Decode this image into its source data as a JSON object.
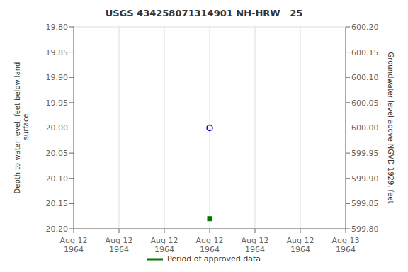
{
  "chart_data": {
    "type": "scatter",
    "title": "USGS 434258071314901 NH-HRW   25",
    "ylabel": "Depth to water level, feet below land\n surface",
    "y2label": "Groundwater level above NGVD 1929, feet",
    "categories": [
      "Aug 12\n1964",
      "Aug 12\n1964",
      "Aug 12\n1964",
      "Aug 12\n1964",
      "Aug 12\n1964",
      "Aug 12\n1964",
      "Aug 13\n1964"
    ],
    "series": [
      {
        "color": "#0000cc",
        "marker": "circle",
        "values": [
          null,
          null,
          null,
          20.0,
          null,
          null,
          null
        ]
      },
      {
        "name": "Period of approved data",
        "color": "#007700",
        "marker": "square",
        "values": [
          null,
          null,
          null,
          20.18,
          null,
          null,
          null
        ]
      }
    ],
    "ylim": [
      20.2,
      19.8
    ],
    "yticks": [
      {
        "value": 19.8,
        "label": "19.80"
      },
      {
        "value": 19.85,
        "label": "19.85"
      },
      {
        "value": 19.9,
        "label": "19.90"
      },
      {
        "value": 19.95,
        "label": "19.95"
      },
      {
        "value": 20.0,
        "label": "20.00"
      },
      {
        "value": 20.05,
        "label": "20.05"
      },
      {
        "value": 20.1,
        "label": "20.10"
      },
      {
        "value": 20.15,
        "label": "20.15"
      },
      {
        "value": 20.2,
        "label": "20.20"
      }
    ],
    "y2lim": [
      599.8,
      600.2
    ],
    "y2ticks": [
      {
        "value": 600.2,
        "label": "600.20"
      },
      {
        "value": 600.15,
        "label": "600.15"
      },
      {
        "value": 600.1,
        "label": "600.10"
      },
      {
        "value": 600.05,
        "label": "600.05"
      },
      {
        "value": 600.0,
        "label": "600.00"
      },
      {
        "value": 599.95,
        "label": "599.95"
      },
      {
        "value": 599.9,
        "label": "599.90"
      },
      {
        "value": 599.85,
        "label": "599.85"
      },
      {
        "value": 599.8,
        "label": "599.80"
      }
    ],
    "grid": true,
    "legend": "bottom"
  }
}
